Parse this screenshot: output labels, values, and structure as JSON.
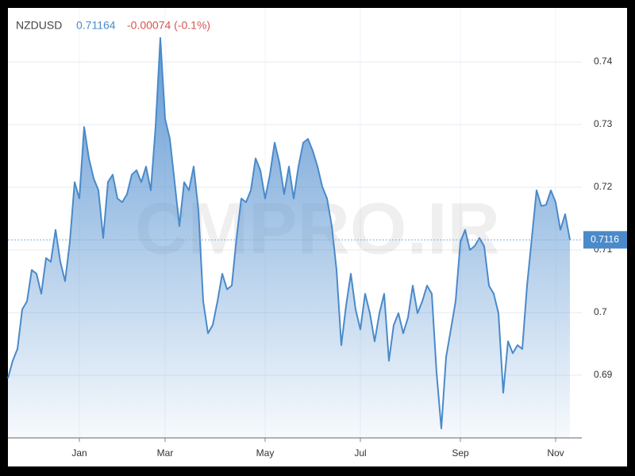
{
  "chart_data": {
    "type": "area",
    "title": "NZDUSD",
    "last_value": "0.71164",
    "change_label": "-0.00074 (-0.1%)",
    "watermark": "CMPRO.IR",
    "current_price": 0.7116,
    "categories": [
      null,
      null,
      null,
      null,
      null,
      null,
      null,
      null,
      null,
      null,
      null,
      null,
      null,
      null,
      null,
      "Jan",
      null,
      null,
      null,
      null,
      null,
      null,
      null,
      null,
      null,
      null,
      null,
      null,
      null,
      null,
      null,
      null,
      null,
      "Mar",
      null,
      null,
      null,
      null,
      null,
      null,
      null,
      null,
      null,
      null,
      null,
      null,
      null,
      null,
      null,
      null,
      null,
      null,
      null,
      null,
      "May",
      null,
      null,
      null,
      null,
      null,
      null,
      null,
      null,
      null,
      null,
      null,
      null,
      null,
      null,
      null,
      null,
      null,
      null,
      null,
      "Jul",
      null,
      null,
      null,
      null,
      null,
      null,
      null,
      null,
      null,
      null,
      null,
      null,
      null,
      null,
      null,
      null,
      null,
      null,
      null,
      null,
      "Sep",
      null,
      null,
      null,
      null,
      null,
      null,
      null,
      null,
      null,
      null,
      null,
      null,
      null,
      null,
      null,
      null,
      null,
      null,
      null,
      "Nov",
      null,
      null,
      null
    ],
    "series": [
      {
        "name": "NZDUSD",
        "color": "#4a8ac9",
        "values": [
          0.6895,
          0.6923,
          0.6942,
          0.7005,
          0.7018,
          0.7068,
          0.7062,
          0.703,
          0.7087,
          0.7081,
          0.7132,
          0.7081,
          0.705,
          0.7113,
          0.7208,
          0.7182,
          0.7296,
          0.7246,
          0.7214,
          0.7195,
          0.7119,
          0.7208,
          0.722,
          0.7182,
          0.7176,
          0.7189,
          0.722,
          0.7227,
          0.7208,
          0.7233,
          0.7195,
          0.7296,
          0.7438,
          0.7309,
          0.7277,
          0.7208,
          0.7138,
          0.7208,
          0.7195,
          0.7233,
          0.7163,
          0.7018,
          0.6967,
          0.698,
          0.7018,
          0.7062,
          0.7037,
          0.7043,
          0.7119,
          0.7182,
          0.7176,
          0.7195,
          0.7246,
          0.7227,
          0.7182,
          0.722,
          0.7271,
          0.7239,
          0.7189,
          0.7233,
          0.7182,
          0.7233,
          0.7271,
          0.7277,
          0.7258,
          0.7233,
          0.7201,
          0.7182,
          0.7138,
          0.7068,
          0.6948,
          0.7011,
          0.7062,
          0.7005,
          0.6973,
          0.703,
          0.6999,
          0.6954,
          0.6999,
          0.703,
          0.6923,
          0.698,
          0.6999,
          0.6967,
          0.6992,
          0.7043,
          0.6999,
          0.7018,
          0.7043,
          0.703,
          0.6904,
          0.6815,
          0.6929,
          0.6973,
          0.7018,
          0.7113,
          0.7132,
          0.71,
          0.7106,
          0.7119,
          0.7106,
          0.7043,
          0.703,
          0.6999,
          0.6872,
          0.6954,
          0.6935,
          0.6948,
          0.6942,
          0.7043,
          0.7119,
          0.7195,
          0.717,
          0.7172,
          0.7195,
          0.7176,
          0.7132,
          0.7157,
          0.7116
        ]
      }
    ],
    "ylim": [
      0.68,
      0.7486
    ],
    "yticks": [
      0.69,
      0.7,
      0.71,
      0.72,
      0.73,
      0.74
    ],
    "grid": true
  }
}
